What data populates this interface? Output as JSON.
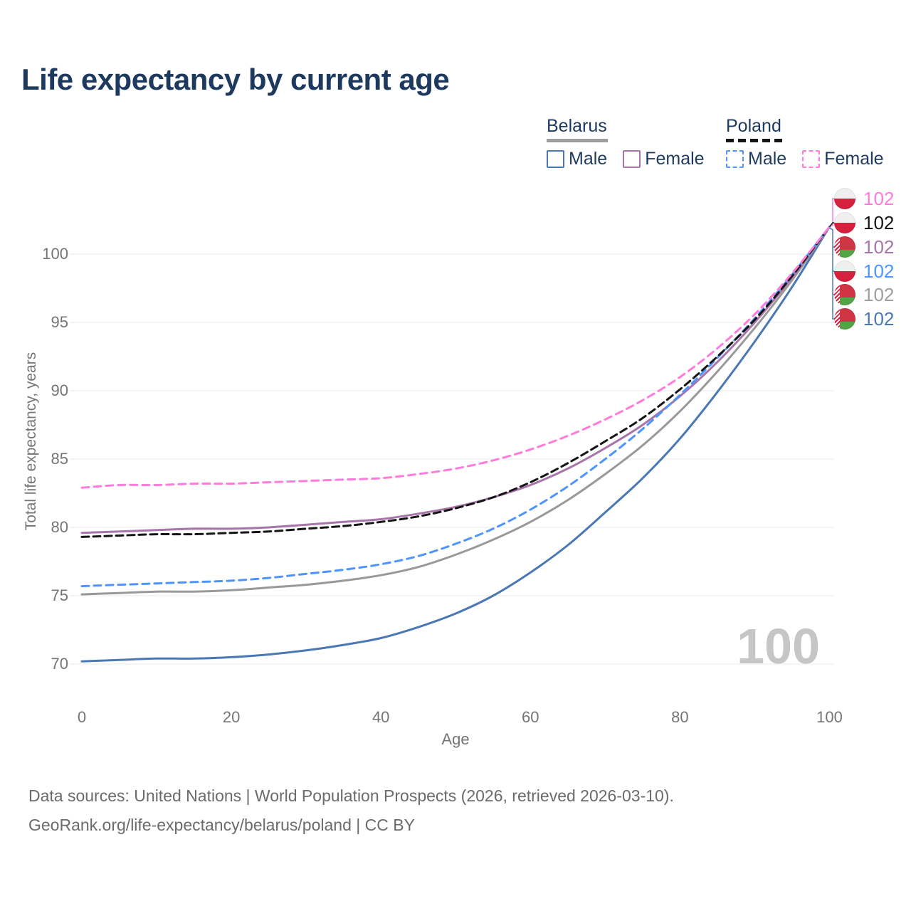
{
  "title": "Life expectancy by current age",
  "legend": {
    "groups": [
      {
        "country": "Belarus",
        "line_style": "solid",
        "line_color": "#9e9e9e",
        "items": [
          {
            "label": "Male",
            "color": "#4a78b5",
            "dashed": false
          },
          {
            "label": "Female",
            "color": "#a875ab",
            "dashed": false
          }
        ]
      },
      {
        "country": "Poland",
        "line_style": "dashed",
        "line_color": "#151515",
        "items": [
          {
            "label": "Male",
            "color": "#4d94ff",
            "dashed": true
          },
          {
            "label": "Female",
            "color": "#ff7bdc",
            "dashed": true
          }
        ]
      }
    ]
  },
  "watermark": "100",
  "footer": {
    "line1": "Data sources: United Nations | World Population Prospects (2026, retrieved 2026-03-10).",
    "line2": "GeoRank.org/life-expectancy/belarus/poland | CC BY"
  },
  "chart_data": {
    "type": "line",
    "title": "Life expectancy by current age",
    "xlabel": "Age",
    "ylabel": "Total life expectancy, years",
    "xlim": [
      0,
      100
    ],
    "ylim": [
      68,
      103
    ],
    "xticks": [
      0,
      20,
      40,
      60,
      80,
      100
    ],
    "yticks": [
      70,
      75,
      80,
      85,
      90,
      95,
      100
    ],
    "grid": "horizontal",
    "legend_position": "top-right",
    "x": [
      0,
      5,
      10,
      15,
      20,
      25,
      30,
      35,
      40,
      45,
      50,
      55,
      60,
      65,
      70,
      75,
      80,
      85,
      90,
      95,
      100
    ],
    "series": [
      {
        "id": "belarus-male",
        "name": "Belarus Male",
        "country": "Belarus",
        "sex": "Male",
        "color": "#4a78b5",
        "dash": "solid",
        "end_label": "102",
        "values": [
          70.2,
          70.3,
          70.4,
          70.4,
          70.5,
          70.7,
          71.0,
          71.4,
          71.9,
          72.7,
          73.7,
          75.0,
          76.7,
          78.7,
          81.1,
          83.6,
          86.5,
          89.9,
          93.6,
          97.6,
          102
        ]
      },
      {
        "id": "belarus-total",
        "name": "Belarus",
        "country": "Belarus",
        "sex": "Both",
        "color": "#999999",
        "dash": "solid",
        "end_label": "102",
        "values": [
          75.1,
          75.2,
          75.3,
          75.3,
          75.4,
          75.6,
          75.8,
          76.1,
          76.5,
          77.1,
          78.0,
          79.1,
          80.4,
          82.0,
          83.9,
          86.0,
          88.5,
          91.4,
          94.6,
          98.1,
          102
        ]
      },
      {
        "id": "belarus-female",
        "name": "Belarus Female",
        "country": "Belarus",
        "sex": "Female",
        "color": "#a875ab",
        "dash": "solid",
        "end_label": "102",
        "values": [
          79.6,
          79.7,
          79.8,
          79.9,
          79.9,
          80.0,
          80.2,
          80.4,
          80.6,
          81.0,
          81.5,
          82.2,
          83.1,
          84.3,
          85.8,
          87.5,
          89.6,
          92.1,
          95.0,
          98.3,
          102
        ]
      },
      {
        "id": "poland-male",
        "name": "Poland Male",
        "country": "Poland",
        "sex": "Male",
        "color": "#4d94ff",
        "dash": "dashed",
        "end_label": "102",
        "values": [
          75.7,
          75.8,
          75.9,
          76.0,
          76.1,
          76.3,
          76.6,
          76.9,
          77.3,
          77.9,
          78.8,
          79.9,
          81.3,
          83.0,
          85.0,
          87.2,
          89.7,
          92.4,
          95.3,
          98.5,
          102
        ]
      },
      {
        "id": "poland-total",
        "name": "Poland",
        "country": "Poland",
        "sex": "Both",
        "color": "#151515",
        "dash": "dashed",
        "end_label": "102",
        "values": [
          79.3,
          79.4,
          79.5,
          79.5,
          79.6,
          79.7,
          79.9,
          80.1,
          80.4,
          80.8,
          81.4,
          82.2,
          83.3,
          84.7,
          86.3,
          88.0,
          90.1,
          92.5,
          95.2,
          98.4,
          102
        ]
      },
      {
        "id": "poland-female",
        "name": "Poland Female",
        "country": "Poland",
        "sex": "Female",
        "color": "#ff7bdc",
        "dash": "dashed",
        "end_label": "102",
        "values": [
          82.9,
          83.1,
          83.1,
          83.2,
          83.2,
          83.3,
          83.4,
          83.5,
          83.6,
          83.9,
          84.3,
          84.9,
          85.7,
          86.7,
          87.9,
          89.3,
          91.0,
          93.1,
          95.6,
          98.6,
          102
        ]
      }
    ],
    "end_label_rows": [
      {
        "series": "poland-female",
        "flag": "poland",
        "value": "102",
        "color": "#ff7bdc"
      },
      {
        "series": "poland-total",
        "flag": "poland",
        "value": "102",
        "color": "#151515"
      },
      {
        "series": "belarus-female",
        "flag": "belarus",
        "value": "102",
        "color": "#a875ab"
      },
      {
        "series": "poland-male",
        "flag": "poland",
        "value": "102",
        "color": "#4d94ff"
      },
      {
        "series": "belarus-total",
        "flag": "belarus",
        "value": "102",
        "color": "#9e9e9e"
      },
      {
        "series": "belarus-male",
        "flag": "belarus",
        "value": "102",
        "color": "#4a78b5"
      }
    ],
    "annotations": [
      {
        "text": "100",
        "role": "age-watermark"
      }
    ]
  }
}
